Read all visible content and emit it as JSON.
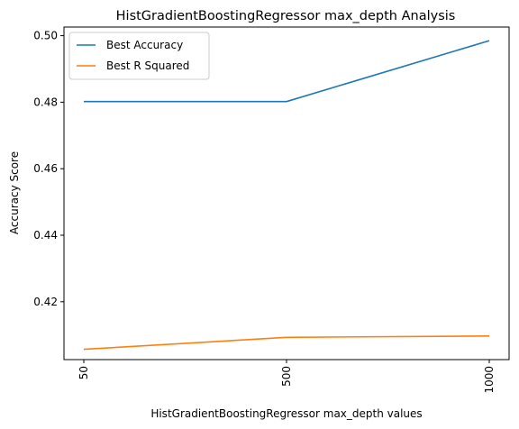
{
  "chart_data": {
    "type": "line",
    "title": "HistGradientBoostingRegressor max_depth Analysis",
    "xlabel": "HistGradientBoostingRegressor max_depth values",
    "ylabel": "Accuracy Score",
    "categories": [
      "50",
      "500",
      "1000"
    ],
    "series": [
      {
        "name": "Best Accuracy",
        "color": "#1f77b4",
        "values": [
          0.4802,
          0.4802,
          0.4985
        ]
      },
      {
        "name": "Best R Squared",
        "color": "#ff7f0e",
        "values": [
          0.4057,
          0.4093,
          0.4097
        ]
      }
    ],
    "ylim": [
      0.4026,
      0.5026
    ],
    "yticks": [
      "0.42",
      "0.44",
      "0.46",
      "0.48",
      "0.50"
    ],
    "ytick_values": [
      0.42,
      0.44,
      0.46,
      0.48,
      0.5
    ],
    "grid": false,
    "legend_position": "upper-left"
  }
}
